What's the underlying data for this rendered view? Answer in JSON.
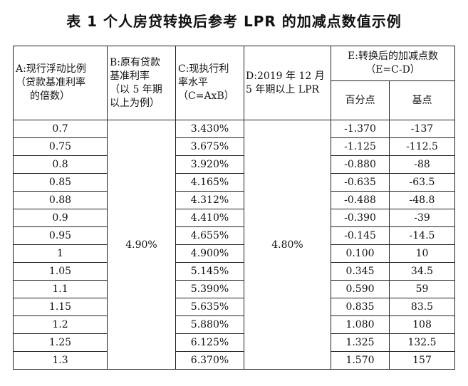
{
  "title": "表 1  个人房贷转换后参考 LPR 的加减点数值示例",
  "headers": {
    "a": [
      "A:现行浮动比例",
      "（贷款基准利率",
      "的倍数）"
    ],
    "b": [
      "B:原有贷款",
      "基准利率",
      "（以 5 年期",
      "以上为例）"
    ],
    "c": [
      "C:现执行利",
      "率水平",
      "（C=AxB）"
    ],
    "d": [
      "D:2019 年 12 月",
      "5 年期以上 LPR"
    ],
    "e": [
      "E:转换后的加减点数",
      "（E=C-D）"
    ],
    "e_sub": [
      "百分点",
      "基点"
    ]
  },
  "base_rate": "4.90%",
  "lpr": "4.80%",
  "rows": [
    {
      "a": "0.7",
      "c": "3.430%",
      "pct": "-1.370",
      "bp": "-137"
    },
    {
      "a": "0.75",
      "c": "3.675%",
      "pct": "-1.125",
      "bp": "-112.5"
    },
    {
      "a": "0.8",
      "c": "3.920%",
      "pct": "-0.880",
      "bp": "-88"
    },
    {
      "a": "0.85",
      "c": "4.165%",
      "pct": "-0.635",
      "bp": "-63.5"
    },
    {
      "a": "0.88",
      "c": "4.312%",
      "pct": "-0.488",
      "bp": "-48.8"
    },
    {
      "a": "0.9",
      "c": "4.410%",
      "pct": "-0.390",
      "bp": "-39"
    },
    {
      "a": "0.95",
      "c": "4.655%",
      "pct": "-0.145",
      "bp": "-14.5"
    },
    {
      "a": "1",
      "c": "4.900%",
      "pct": "0.100",
      "bp": "10"
    },
    {
      "a": "1.05",
      "c": "5.145%",
      "pct": "0.345",
      "bp": "34.5"
    },
    {
      "a": "1.1",
      "c": "5.390%",
      "pct": "0.590",
      "bp": "59"
    },
    {
      "a": "1.15",
      "c": "5.635%",
      "pct": "0.835",
      "bp": "83.5"
    },
    {
      "a": "1.2",
      "c": "5.880%",
      "pct": "1.080",
      "bp": "108"
    },
    {
      "a": "1.25",
      "c": "6.125%",
      "pct": "1.325",
      "bp": "132.5"
    },
    {
      "a": "1.3",
      "c": "6.370%",
      "pct": "1.570",
      "bp": "157"
    }
  ]
}
